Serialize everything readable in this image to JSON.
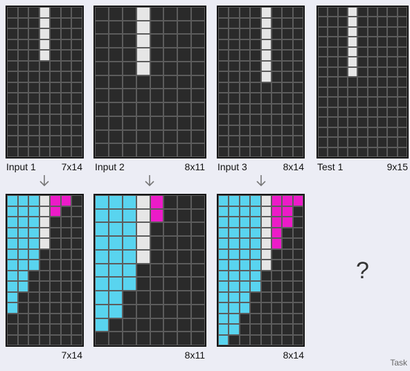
{
  "colors": {
    "background": "#2a2a2a",
    "white": "#e6e6e6",
    "cyan": "#59d4ef",
    "magenta": "#ec1bc8",
    "grid_line": "#5c5c5c"
  },
  "icons": {
    "arrow": "arrow-down-icon"
  },
  "pairs": [
    {
      "input": {
        "label": "Input 1",
        "size": "7x14",
        "cols": 7,
        "rows": 14,
        "rows_data": [
          "...w...",
          "...w...",
          "...w...",
          "...w...",
          "...w...",
          ".......",
          ".......",
          ".......",
          ".......",
          ".......",
          ".......",
          ".......",
          ".......",
          "......."
        ]
      },
      "output": {
        "size": "7x14",
        "cols": 7,
        "rows": 14,
        "rows_data": [
          "cccwmm.",
          "cccwm..",
          "cccw...",
          "cccw...",
          "cccw...",
          "ccc....",
          "ccc....",
          "cc.....",
          "cc.....",
          "c......",
          "c......",
          ".......",
          ".......",
          "......."
        ]
      }
    },
    {
      "input": {
        "label": "Input 2",
        "size": "8x11",
        "cols": 8,
        "rows": 11,
        "rows_data": [
          "...w....",
          "...w....",
          "...w....",
          "...w....",
          "...w....",
          "........",
          "........",
          "........",
          "........",
          "........",
          "........"
        ]
      },
      "output": {
        "size": "8x11",
        "cols": 8,
        "rows": 11,
        "rows_data": [
          "cccwm...",
          "cccwm...",
          "cccw....",
          "cccw....",
          "cccw....",
          "ccc.....",
          "ccc.....",
          "cc......",
          "cc......",
          "c.......",
          "........"
        ]
      }
    },
    {
      "input": {
        "label": "Input 3",
        "size": "8x14",
        "cols": 8,
        "rows": 14,
        "rows_data": [
          "....w...",
          "....w...",
          "....w...",
          "....w...",
          "....w...",
          "....w...",
          "....w...",
          "........",
          "........",
          "........",
          "........",
          "........",
          "........",
          "........"
        ]
      },
      "output": {
        "size": "8x14",
        "cols": 8,
        "rows": 14,
        "rows_data": [
          "ccccwmmm",
          "ccccwmm.",
          "ccccwmm.",
          "ccccwm..",
          "ccccwm..",
          "ccccw...",
          "ccccw...",
          "cccc....",
          "cccc....",
          "ccc.....",
          "ccc.....",
          "cc......",
          "cc......",
          "c......."
        ]
      }
    }
  ],
  "test": {
    "label": "Test 1",
    "size": "9x15",
    "cols": 9,
    "rows": 15,
    "rows_data": [
      "...w.....",
      "...w.....",
      "...w.....",
      "...w.....",
      "...w.....",
      "...w.....",
      "...w.....",
      ".........",
      ".........",
      ".........",
      ".........",
      ".........",
      ".........",
      ".........",
      "........."
    ]
  },
  "unknown_output": "?",
  "task_label": "Task"
}
